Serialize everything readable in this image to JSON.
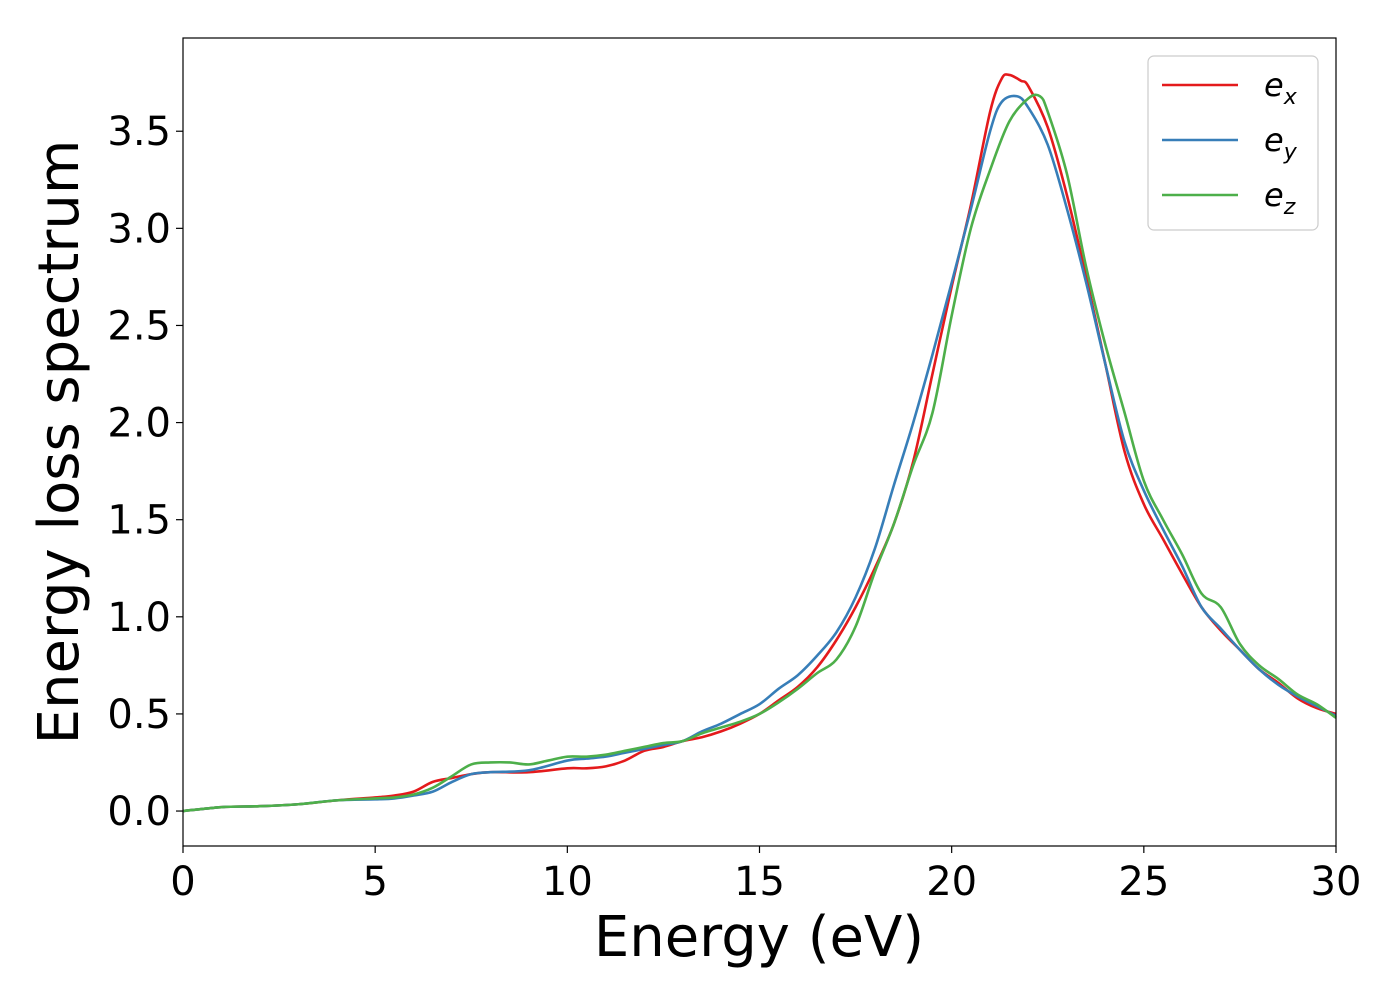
{
  "chart_data": {
    "type": "line",
    "xlabel": "Energy (eV)",
    "ylabel": "Energy loss spectrum",
    "xlim": [
      0,
      30
    ],
    "ylim": [
      -0.18,
      3.98
    ],
    "xticks": [
      0,
      5,
      10,
      15,
      20,
      25,
      30
    ],
    "xtick_labels": [
      "0",
      "5",
      "10",
      "15",
      "20",
      "25",
      "30"
    ],
    "yticks": [
      0.0,
      0.5,
      1.0,
      1.5,
      2.0,
      2.5,
      3.0,
      3.5
    ],
    "ytick_labels": [
      "0.0",
      "0.5",
      "1.0",
      "1.5",
      "2.0",
      "2.5",
      "3.0",
      "3.5"
    ],
    "grid": false,
    "legend_position": "top-right",
    "series": [
      {
        "name": "e_x",
        "label_base": "e",
        "label_sub": "x",
        "color": "#e41a1c",
        "points": [
          [
            0,
            0
          ],
          [
            1,
            0.02
          ],
          [
            2,
            0.025
          ],
          [
            3,
            0.035
          ],
          [
            4,
            0.055
          ],
          [
            5,
            0.07
          ],
          [
            5.5,
            0.08
          ],
          [
            6,
            0.1
          ],
          [
            6.5,
            0.15
          ],
          [
            7,
            0.17
          ],
          [
            7.5,
            0.19
          ],
          [
            8,
            0.2
          ],
          [
            9,
            0.2
          ],
          [
            10,
            0.22
          ],
          [
            10.5,
            0.22
          ],
          [
            11,
            0.23
          ],
          [
            11.5,
            0.26
          ],
          [
            12,
            0.31
          ],
          [
            12.5,
            0.33
          ],
          [
            13,
            0.36
          ],
          [
            13.5,
            0.38
          ],
          [
            14,
            0.41
          ],
          [
            14.5,
            0.45
          ],
          [
            15,
            0.5
          ],
          [
            15.5,
            0.57
          ],
          [
            16,
            0.64
          ],
          [
            16.5,
            0.74
          ],
          [
            17,
            0.88
          ],
          [
            17.5,
            1.05
          ],
          [
            18,
            1.25
          ],
          [
            18.5,
            1.48
          ],
          [
            19,
            1.8
          ],
          [
            19.5,
            2.25
          ],
          [
            20,
            2.7
          ],
          [
            20.5,
            3.12
          ],
          [
            21,
            3.6
          ],
          [
            21.3,
            3.77
          ],
          [
            21.5,
            3.79
          ],
          [
            21.8,
            3.76
          ],
          [
            22,
            3.73
          ],
          [
            22.5,
            3.52
          ],
          [
            23,
            3.17
          ],
          [
            23.5,
            2.75
          ],
          [
            24,
            2.3
          ],
          [
            24.5,
            1.85
          ],
          [
            25,
            1.58
          ],
          [
            25.5,
            1.4
          ],
          [
            26,
            1.22
          ],
          [
            26.5,
            1.05
          ],
          [
            27,
            0.93
          ],
          [
            27.5,
            0.83
          ],
          [
            28,
            0.73
          ],
          [
            28.5,
            0.66
          ],
          [
            29,
            0.58
          ],
          [
            29.5,
            0.53
          ],
          [
            30,
            0.5
          ]
        ]
      },
      {
        "name": "e_y",
        "label_base": "e",
        "label_sub": "y",
        "color": "#377eb8",
        "points": [
          [
            0,
            0
          ],
          [
            1,
            0.02
          ],
          [
            2,
            0.025
          ],
          [
            3,
            0.035
          ],
          [
            4,
            0.055
          ],
          [
            5,
            0.06
          ],
          [
            5.5,
            0.065
          ],
          [
            6,
            0.08
          ],
          [
            6.5,
            0.1
          ],
          [
            7,
            0.15
          ],
          [
            7.5,
            0.19
          ],
          [
            8,
            0.2
          ],
          [
            9,
            0.21
          ],
          [
            10,
            0.26
          ],
          [
            10.5,
            0.27
          ],
          [
            11,
            0.28
          ],
          [
            11.5,
            0.3
          ],
          [
            12,
            0.32
          ],
          [
            12.5,
            0.34
          ],
          [
            13,
            0.36
          ],
          [
            13.5,
            0.41
          ],
          [
            14,
            0.45
          ],
          [
            14.5,
            0.5
          ],
          [
            15,
            0.55
          ],
          [
            15.5,
            0.63
          ],
          [
            16,
            0.7
          ],
          [
            16.5,
            0.8
          ],
          [
            17,
            0.92
          ],
          [
            17.5,
            1.1
          ],
          [
            18,
            1.35
          ],
          [
            18.5,
            1.68
          ],
          [
            19,
            2.0
          ],
          [
            19.5,
            2.35
          ],
          [
            20,
            2.72
          ],
          [
            20.5,
            3.1
          ],
          [
            21,
            3.5
          ],
          [
            21.3,
            3.65
          ],
          [
            21.7,
            3.68
          ],
          [
            22,
            3.62
          ],
          [
            22.5,
            3.43
          ],
          [
            23,
            3.1
          ],
          [
            23.5,
            2.72
          ],
          [
            24,
            2.3
          ],
          [
            24.5,
            1.9
          ],
          [
            25,
            1.65
          ],
          [
            25.5,
            1.45
          ],
          [
            26,
            1.26
          ],
          [
            26.5,
            1.05
          ],
          [
            27,
            0.94
          ],
          [
            27.5,
            0.83
          ],
          [
            28,
            0.73
          ],
          [
            28.5,
            0.65
          ],
          [
            29,
            0.59
          ],
          [
            29.5,
            0.54
          ],
          [
            30,
            0.49
          ]
        ]
      },
      {
        "name": "e_z",
        "label_base": "e",
        "label_sub": "z",
        "color": "#4daf4a",
        "points": [
          [
            0,
            0
          ],
          [
            1,
            0.02
          ],
          [
            2,
            0.025
          ],
          [
            3,
            0.035
          ],
          [
            4,
            0.055
          ],
          [
            5,
            0.065
          ],
          [
            5.5,
            0.07
          ],
          [
            6,
            0.085
          ],
          [
            6.5,
            0.12
          ],
          [
            7,
            0.18
          ],
          [
            7.5,
            0.24
          ],
          [
            8,
            0.25
          ],
          [
            8.5,
            0.25
          ],
          [
            9,
            0.24
          ],
          [
            9.5,
            0.26
          ],
          [
            10,
            0.28
          ],
          [
            10.5,
            0.28
          ],
          [
            11,
            0.29
          ],
          [
            11.5,
            0.31
          ],
          [
            12,
            0.33
          ],
          [
            12.5,
            0.35
          ],
          [
            13,
            0.36
          ],
          [
            13.5,
            0.4
          ],
          [
            14,
            0.43
          ],
          [
            14.5,
            0.46
          ],
          [
            15,
            0.5
          ],
          [
            15.5,
            0.56
          ],
          [
            16,
            0.63
          ],
          [
            16.5,
            0.71
          ],
          [
            17,
            0.78
          ],
          [
            17.5,
            0.95
          ],
          [
            18,
            1.23
          ],
          [
            18.5,
            1.48
          ],
          [
            19,
            1.78
          ],
          [
            19.5,
            2.05
          ],
          [
            20,
            2.55
          ],
          [
            20.5,
            3.0
          ],
          [
            21,
            3.3
          ],
          [
            21.5,
            3.55
          ],
          [
            22,
            3.67
          ],
          [
            22.3,
            3.68
          ],
          [
            22.5,
            3.6
          ],
          [
            23,
            3.28
          ],
          [
            23.5,
            2.8
          ],
          [
            24,
            2.4
          ],
          [
            24.5,
            2.05
          ],
          [
            25,
            1.7
          ],
          [
            25.5,
            1.5
          ],
          [
            26,
            1.32
          ],
          [
            26.5,
            1.12
          ],
          [
            27,
            1.05
          ],
          [
            27.5,
            0.86
          ],
          [
            28,
            0.75
          ],
          [
            28.5,
            0.68
          ],
          [
            29,
            0.6
          ],
          [
            29.5,
            0.55
          ],
          [
            30,
            0.48
          ]
        ]
      }
    ]
  }
}
